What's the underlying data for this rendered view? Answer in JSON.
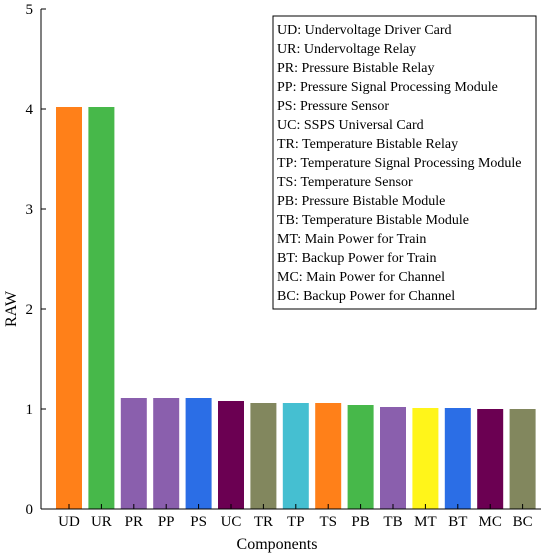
{
  "chart_data": {
    "type": "bar",
    "xlabel": "Components",
    "ylabel": "RAW",
    "ylim": [
      0,
      5
    ],
    "yticks": [
      "0",
      "1",
      "2",
      "3",
      "4",
      "5"
    ],
    "grid": false,
    "legend_position": "top-right",
    "categories": [
      "UD",
      "UR",
      "PR",
      "PP",
      "PS",
      "UC",
      "TR",
      "TP",
      "TS",
      "PB",
      "TB",
      "MT",
      "BT",
      "MC",
      "BC"
    ],
    "values": [
      4.02,
      4.02,
      1.11,
      1.11,
      1.11,
      1.08,
      1.06,
      1.06,
      1.06,
      1.04,
      1.02,
      1.01,
      1.01,
      1.0,
      1.0
    ],
    "colors": [
      "#FF8019",
      "#47B84A",
      "#8A5FAD",
      "#8A5FAD",
      "#2B6EE6",
      "#6B0052",
      "#82875E",
      "#45BFD1",
      "#FF8019",
      "#47B84A",
      "#8A5FAD",
      "#FFF51A",
      "#2B6EE6",
      "#6B0052",
      "#82875E"
    ],
    "legend": [
      "UD: Undervoltage Driver Card",
      "UR: Undervoltage Relay",
      "PR: Pressure Bistable Relay",
      "PP: Pressure Signal Processing Module",
      "PS: Pressure Sensor",
      "UC: SSPS Universal Card",
      "TR: Temperature Bistable Relay",
      "TP: Temperature Signal Processing Module",
      "TS: Temperature Sensor",
      "PB: Pressure Bistable Module",
      "TB: Temperature Bistable Module",
      "MT: Main Power for Train",
      "BT: Backup Power for Train",
      "MC: Main Power for Channel",
      "BC: Backup Power for Channel"
    ]
  }
}
